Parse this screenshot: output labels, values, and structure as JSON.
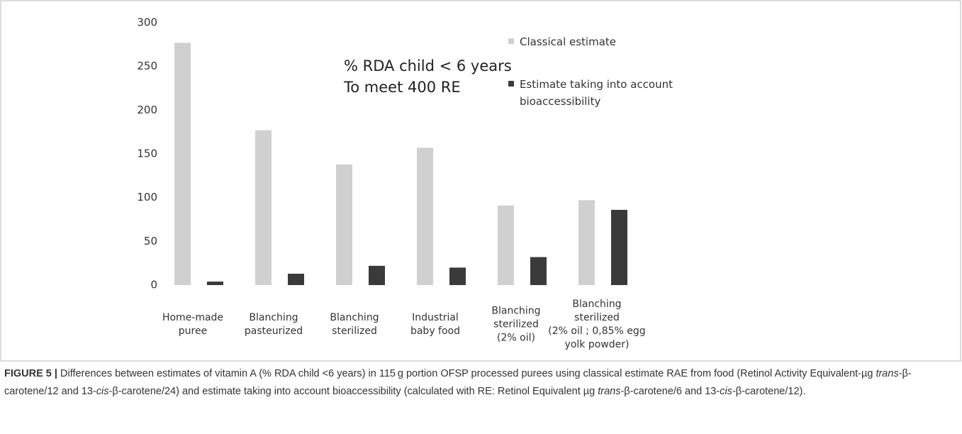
{
  "chart_data": {
    "type": "bar",
    "annotation": "% RDA child < 6 years\nTo meet 400 RE",
    "categories": [
      "Home-made\npuree",
      "Blanching\npasteurized",
      "Blanching\nsterilized",
      "Industrial\nbaby food",
      "Blanching\nsterilized\n(2% oil)",
      "Blanching\nsterilized\n(2% oil ; 0,85% egg\nyolk powder)"
    ],
    "series": [
      {
        "name": "Classical estimate",
        "color": "#d0d0d0",
        "values": [
          277,
          177,
          138,
          157,
          91,
          97
        ]
      },
      {
        "name": "Estimate taking into account\nbioaccessibility",
        "color": "#3a3a3a",
        "values": [
          4,
          13,
          22,
          20,
          32,
          86
        ]
      }
    ],
    "ylim": [
      0,
      300
    ],
    "yticks": [
      0,
      50,
      100,
      150,
      200,
      250,
      300
    ],
    "grid": false,
    "legend": "right"
  },
  "caption": {
    "label": "FIGURE 5 |",
    "runs": [
      {
        "text": " Differences between estimates of vitamin A (% RDA child <6 years) in 115 g portion OFSP processed purees using classical estimate RAE from food (Retinol Activity Equivalent-µg ",
        "italic": false
      },
      {
        "text": "trans",
        "italic": true
      },
      {
        "text": "-β-carotene/12 and 13-",
        "italic": false
      },
      {
        "text": "cis",
        "italic": true
      },
      {
        "text": "-β-carotene/24) and estimate taking into account bioaccessibility (calculated with RE: Retinol Equivalent µg ",
        "italic": false
      },
      {
        "text": "trans",
        "italic": true
      },
      {
        "text": "-β-carotene/6 and 13-",
        "italic": false
      },
      {
        "text": "cis",
        "italic": true
      },
      {
        "text": "-β-carotene/12).",
        "italic": false
      }
    ]
  }
}
